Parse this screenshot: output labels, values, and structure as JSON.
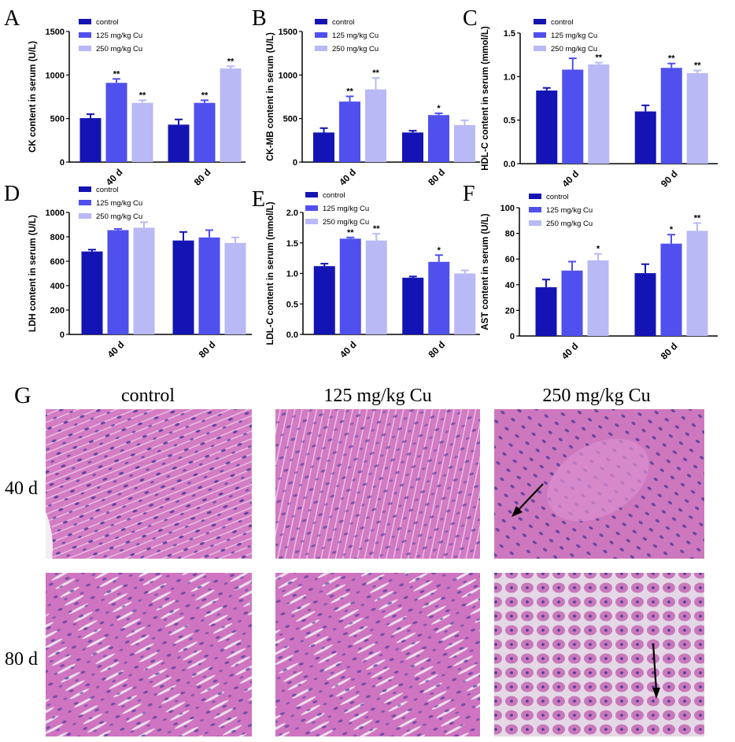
{
  "colors": {
    "control": "#1414b4",
    "cu125": "#5050ee",
    "cu250": "#b9b9f6",
    "tissue_bg": "#d982c8",
    "tissue_fiber": "#c65fb6",
    "tissue_nuclei": "#4d3a9c",
    "tissue_gap": "#e9dcea"
  },
  "legend": [
    "control",
    "125 mg/kg Cu",
    "250 mg/kg Cu"
  ],
  "chart_data": [
    {
      "type": "bar",
      "panel": "A",
      "ylabel": "CK content in serum (U/L)",
      "categories": [
        "40 d",
        "80 d"
      ],
      "ylim": [
        0,
        1500
      ],
      "yticks": [
        "0",
        "500",
        "1000",
        "1500"
      ],
      "ytick_values": [
        0,
        500,
        1000,
        1500
      ],
      "series": [
        {
          "name": "control",
          "values": [
            505,
            430
          ],
          "errors": [
            45,
            60
          ]
        },
        {
          "name": "125 mg/kg Cu",
          "values": [
            910,
            680
          ],
          "errors": [
            45,
            30
          ]
        },
        {
          "name": "250 mg/kg Cu",
          "values": [
            680,
            1075
          ],
          "errors": [
            30,
            25
          ]
        }
      ],
      "significance": [
        [
          "",
          "**",
          "**"
        ],
        [
          "",
          "**",
          "**"
        ]
      ]
    },
    {
      "type": "bar",
      "panel": "B",
      "ylabel": "CK-MB content in serum (U/L)",
      "categories": [
        "40 d",
        "80 d"
      ],
      "ylim": [
        0,
        1500
      ],
      "yticks": [
        "0",
        "500",
        "1000",
        "1500"
      ],
      "ytick_values": [
        0,
        500,
        1000,
        1500
      ],
      "series": [
        {
          "name": "control",
          "values": [
            340,
            340
          ],
          "errors": [
            50,
            20
          ]
        },
        {
          "name": "125 mg/kg Cu",
          "values": [
            695,
            540
          ],
          "errors": [
            60,
            20
          ]
        },
        {
          "name": "250 mg/kg Cu",
          "values": [
            835,
            425
          ],
          "errors": [
            130,
            55
          ]
        }
      ],
      "significance": [
        [
          "",
          "**",
          "**"
        ],
        [
          "",
          "*",
          ""
        ]
      ]
    },
    {
      "type": "bar",
      "panel": "C",
      "ylabel": "HDL-C content in serum (mmol/L)",
      "categories": [
        "40 d",
        "90 d"
      ],
      "ylim": [
        0,
        1.5
      ],
      "yticks": [
        "0.0",
        "0.5",
        "1.0",
        "1.5"
      ],
      "ytick_values": [
        0,
        0.5,
        1.0,
        1.5
      ],
      "series": [
        {
          "name": "control",
          "values": [
            0.84,
            0.6
          ],
          "errors": [
            0.03,
            0.07
          ]
        },
        {
          "name": "125 mg/kg Cu",
          "values": [
            1.08,
            1.1
          ],
          "errors": [
            0.13,
            0.05
          ]
        },
        {
          "name": "250 mg/kg Cu",
          "values": [
            1.14,
            1.04
          ],
          "errors": [
            0.02,
            0.03
          ]
        }
      ],
      "significance": [
        [
          "",
          "",
          "**"
        ],
        [
          "",
          "**",
          "**"
        ]
      ]
    },
    {
      "type": "bar",
      "panel": "D",
      "ylabel": "LDH content in serum (U/L)",
      "categories": [
        "40 d",
        "80 d"
      ],
      "ylim": [
        0,
        1000
      ],
      "yticks": [
        "0",
        "200",
        "400",
        "600",
        "800",
        "1000"
      ],
      "ytick_values": [
        0,
        200,
        400,
        600,
        800,
        1000
      ],
      "series": [
        {
          "name": "control",
          "values": [
            680,
            770
          ],
          "errors": [
            15,
            70
          ]
        },
        {
          "name": "125 mg/kg Cu",
          "values": [
            855,
            795
          ],
          "errors": [
            10,
            60
          ]
        },
        {
          "name": "250 mg/kg Cu",
          "values": [
            875,
            750
          ],
          "errors": [
            45,
            45
          ]
        }
      ],
      "significance": [
        [
          "",
          "",
          ""
        ],
        [
          "",
          "",
          ""
        ]
      ]
    },
    {
      "type": "bar",
      "panel": "E",
      "ylabel": "LDL-C content in serum (mmol/L)",
      "categories": [
        "40 d",
        "80 d"
      ],
      "ylim": [
        0,
        2.0
      ],
      "yticks": [
        "0.0",
        "0.5",
        "1.0",
        "1.5",
        "2.0"
      ],
      "ytick_values": [
        0,
        0.5,
        1.0,
        1.5,
        2.0
      ],
      "series": [
        {
          "name": "control",
          "values": [
            1.12,
            0.93
          ],
          "errors": [
            0.04,
            0.02
          ]
        },
        {
          "name": "125 mg/kg Cu",
          "values": [
            1.57,
            1.19
          ],
          "errors": [
            0.02,
            0.11
          ]
        },
        {
          "name": "250 mg/kg Cu",
          "values": [
            1.54,
            1.0
          ],
          "errors": [
            0.11,
            0.05
          ]
        }
      ],
      "significance": [
        [
          "",
          "**",
          "**"
        ],
        [
          "",
          "*",
          ""
        ]
      ]
    },
    {
      "type": "bar",
      "panel": "F",
      "ylabel": "AST content in serum (U/L)",
      "categories": [
        "40 d",
        "80 d"
      ],
      "ylim": [
        0,
        100
      ],
      "yticks": [
        "0",
        "20",
        "40",
        "60",
        "80",
        "100"
      ],
      "ytick_values": [
        0,
        20,
        40,
        60,
        80,
        100
      ],
      "series": [
        {
          "name": "control",
          "values": [
            38,
            49
          ],
          "errors": [
            6,
            7
          ]
        },
        {
          "name": "125 mg/kg Cu",
          "values": [
            51,
            72
          ],
          "errors": [
            7,
            7
          ]
        },
        {
          "name": "250 mg/kg Cu",
          "values": [
            59,
            82
          ],
          "errors": [
            5,
            6
          ]
        }
      ],
      "significance": [
        [
          "",
          "",
          "*"
        ],
        [
          "",
          "*",
          "**"
        ]
      ]
    }
  ],
  "histology": {
    "panel": "G",
    "columns": [
      "control",
      "125 mg/kg Cu",
      "250 mg/kg Cu"
    ],
    "rows": [
      "40 d",
      "80 d"
    ]
  }
}
